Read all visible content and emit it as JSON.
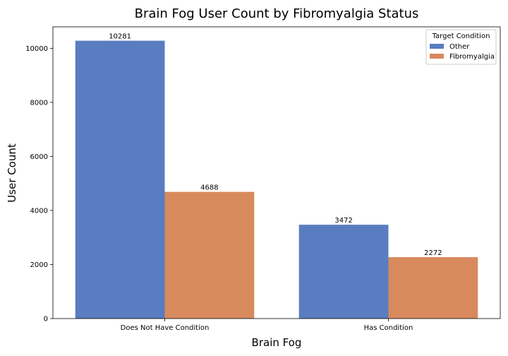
{
  "chart_data": {
    "type": "bar",
    "title": "Brain Fog User Count by Fibromyalgia Status",
    "xlabel": "Brain Fog",
    "ylabel": "User Count",
    "categories": [
      "Does Not Have Condition",
      "Has Condition"
    ],
    "series": [
      {
        "name": "Other",
        "values": [
          10281,
          3472
        ],
        "color": "#5a7dc1"
      },
      {
        "name": "Fibromyalgia",
        "values": [
          4688,
          2272
        ],
        "color": "#d88a5d"
      }
    ],
    "ylim": [
      0,
      10794
    ],
    "yticks": [
      0,
      2000,
      4000,
      6000,
      8000,
      10000
    ],
    "grid": false,
    "legend": {
      "title": "Target Condition",
      "placement": "top-right"
    }
  }
}
